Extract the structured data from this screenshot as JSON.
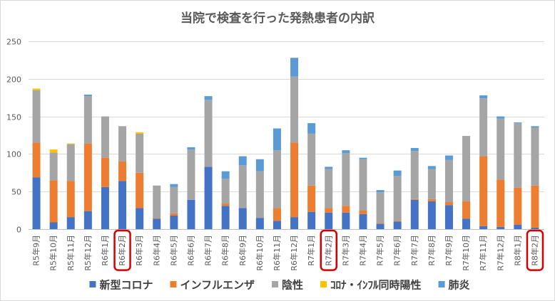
{
  "chart_data": {
    "type": "bar",
    "stacked": true,
    "title": "当院で検査を行った発熱患者の内訳",
    "categories": [
      "R5年9月",
      "R5年10月",
      "R5年11月",
      "R5年12月",
      "R6年1月",
      "R6年2月",
      "R6年3月",
      "R6年4月",
      "R6年5月",
      "R6年6月",
      "R6年7月",
      "R6年8月",
      "R6年9月",
      "R6年10月",
      "R6年11月",
      "R6年12月",
      "R7年1月",
      "R7年2月",
      "R7年3月",
      "R7年4月",
      "R7年5月",
      "R7年6月",
      "R7年7月",
      "R7年8月",
      "R7年9月",
      "R7年10月",
      "R7年11月",
      "R7年12月",
      "R8年1月",
      "R8年2月"
    ],
    "series": [
      {
        "name": "新型コロナ",
        "color": "#4472C4",
        "values": [
          69,
          9,
          16,
          24,
          56,
          64,
          28,
          14,
          18,
          39,
          83,
          31,
          28,
          15,
          11,
          16,
          23,
          22,
          22,
          20,
          7,
          10,
          39,
          37,
          32,
          14,
          4,
          3,
          6,
          2
        ]
      },
      {
        "name": "インフルエンザ",
        "color": "#ED7D31",
        "values": [
          46,
          56,
          48,
          90,
          39,
          26,
          47,
          1,
          3,
          0,
          0,
          3,
          0,
          0,
          17,
          99,
          35,
          6,
          9,
          5,
          1,
          1,
          1,
          3,
          4,
          23,
          93,
          63,
          49,
          56
        ]
      },
      {
        "name": "陰性",
        "color": "#A5A5A5",
        "values": [
          70,
          37,
          49,
          63,
          55,
          47,
          52,
          43,
          35,
          67,
          89,
          33,
          57,
          62,
          77,
          88,
          69,
          52,
          70,
          68,
          41,
          60,
          64,
          40,
          56,
          87,
          77,
          81,
          86,
          77
        ]
      },
      {
        "name": "ｺﾛﾅ・ｲﾝﾌﾙ同時陽性",
        "color": "#FFC000",
        "values": [
          2,
          4,
          1,
          0,
          0,
          0,
          2,
          0,
          0,
          0,
          0,
          0,
          0,
          0,
          0,
          0,
          0,
          0,
          0,
          0,
          0,
          0,
          0,
          0,
          0,
          0,
          0,
          0,
          0,
          0
        ]
      },
      {
        "name": "肺炎",
        "color": "#5B9BD5",
        "values": [
          0,
          0,
          0,
          2,
          0,
          0,
          0,
          0,
          4,
          3,
          5,
          10,
          12,
          16,
          29,
          25,
          14,
          3,
          4,
          2,
          3,
          7,
          4,
          4,
          6,
          0,
          4,
          3,
          1,
          2
        ]
      }
    ],
    "y_ticks": [
      0,
      50,
      100,
      150,
      200,
      250
    ],
    "ylim": [
      0,
      250
    ],
    "grid": true,
    "legend": "bottom",
    "highlighted_categories": [
      "R6年2月",
      "R7年2月",
      "R8年2月"
    ],
    "highlight_color": "#D40000"
  }
}
